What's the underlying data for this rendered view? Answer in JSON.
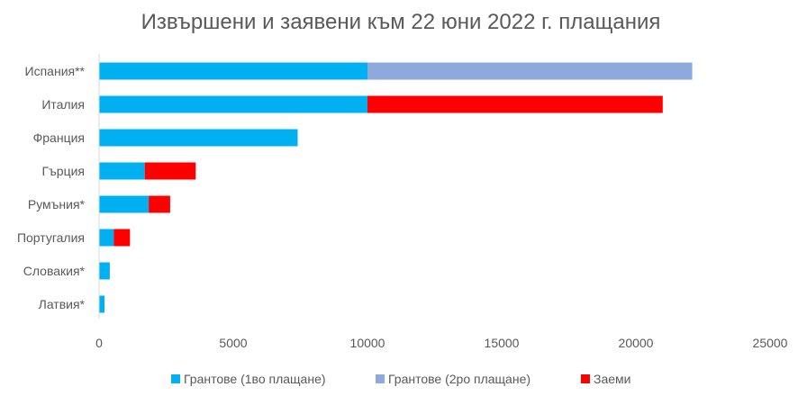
{
  "chart_data": {
    "type": "bar",
    "orientation": "horizontal",
    "stacked": true,
    "title": "Извършени и заявени към 22 юни 2022 г. плащания",
    "categories": [
      "Испания**",
      "Италия",
      "Франция",
      "Гърция",
      "Румъния*",
      "Португалия",
      "Словакия*",
      "Латвия*"
    ],
    "series": [
      {
        "name": "Грантове (1во плащане)",
        "color": "#00B0F0",
        "values": [
          10000,
          10000,
          7400,
          1700,
          1850,
          550,
          400,
          200
        ]
      },
      {
        "name": "Грантове (2ро плащане)",
        "color": "#8EA9DB",
        "values": [
          12100,
          0,
          0,
          0,
          0,
          0,
          0,
          0
        ]
      },
      {
        "name": "Заеми",
        "color": "#FF0000",
        "values": [
          0,
          11000,
          0,
          1900,
          800,
          600,
          0,
          0
        ]
      }
    ],
    "xlim": [
      0,
      25000
    ],
    "x_ticks": [
      0,
      5000,
      10000,
      15000,
      20000,
      25000
    ],
    "grid": false,
    "legend_position": "bottom"
  }
}
